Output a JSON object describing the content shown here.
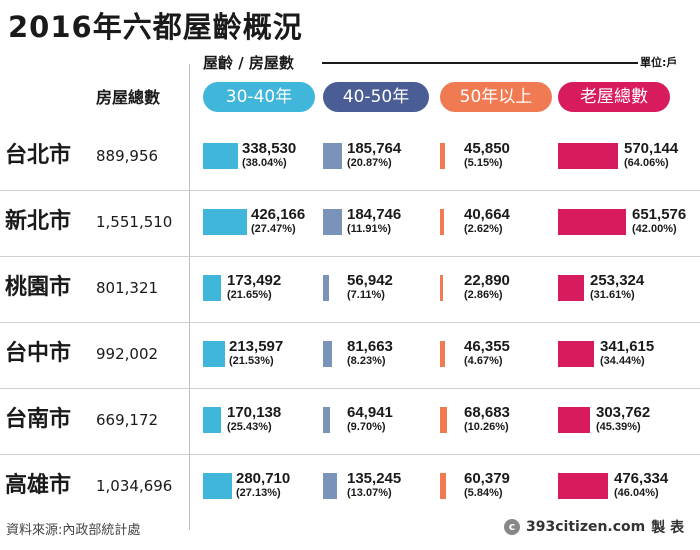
{
  "title": "2016年六都屋齡概況",
  "header_total": "房屋總數",
  "header_age": "屋齡 / 房屋數",
  "unit": "單位:戶",
  "source": "資料來源:內政部統計處",
  "credit": {
    "logo": "c",
    "site": "393citizen.com",
    "suffix": "製 表"
  },
  "colors": {
    "s30_40": "#41b6db",
    "s40_50": "#7a93b8",
    "s50": "#f07a52",
    "old": "#d81b5e",
    "pill40_50": "#4a5d94"
  },
  "chart_data": {
    "type": "bar",
    "title": "2016年六都屋齡概況",
    "categories": [
      "台北市",
      "新北市",
      "桃園市",
      "台中市",
      "台南市",
      "高雄市"
    ],
    "totals": [
      "889,956",
      "1,551,510",
      "801,321",
      "992,002",
      "669,172",
      "1,034,696"
    ],
    "series": [
      {
        "name": "30-40年",
        "values": [
          338530,
          426166,
          173492,
          213597,
          170138,
          280710
        ],
        "labels": [
          "338,530",
          "426,166",
          "173,492",
          "213,597",
          "170,138",
          "280,710"
        ],
        "pct": [
          "(38.04%)",
          "(27.47%)",
          "(21.65%)",
          "(21.53%)",
          "(25.43%)",
          "(27.13%)"
        ]
      },
      {
        "name": "40-50年",
        "values": [
          185764,
          184746,
          56942,
          81663,
          64941,
          135245
        ],
        "labels": [
          "185,764",
          "184,746",
          "56,942",
          "81,663",
          "64,941",
          "135,245"
        ],
        "pct": [
          "(20.87%)",
          "(11.91%)",
          "(7.11%)",
          "(8.23%)",
          "(9.70%)",
          "(13.07%)"
        ]
      },
      {
        "name": "50年以上",
        "values": [
          45850,
          40664,
          22890,
          46355,
          68683,
          60379
        ],
        "labels": [
          "45,850",
          "40,664",
          "22,890",
          "46,355",
          "68,683",
          "60,379"
        ],
        "pct": [
          "(5.15%)",
          "(2.62%)",
          "(2.86%)",
          "(4.67%)",
          "(10.26%)",
          "(5.84%)"
        ]
      },
      {
        "name": "老屋總數",
        "values": [
          570144,
          651576,
          253324,
          341615,
          303762,
          476334
        ],
        "labels": [
          "570,144",
          "651,576",
          "253,324",
          "341,615",
          "303,762",
          "476,334"
        ],
        "pct": [
          "(64.06%)",
          "(42.00%)",
          "(31.61%)",
          "(34.44%)",
          "(45.39%)",
          "(46.04%)"
        ]
      }
    ]
  }
}
